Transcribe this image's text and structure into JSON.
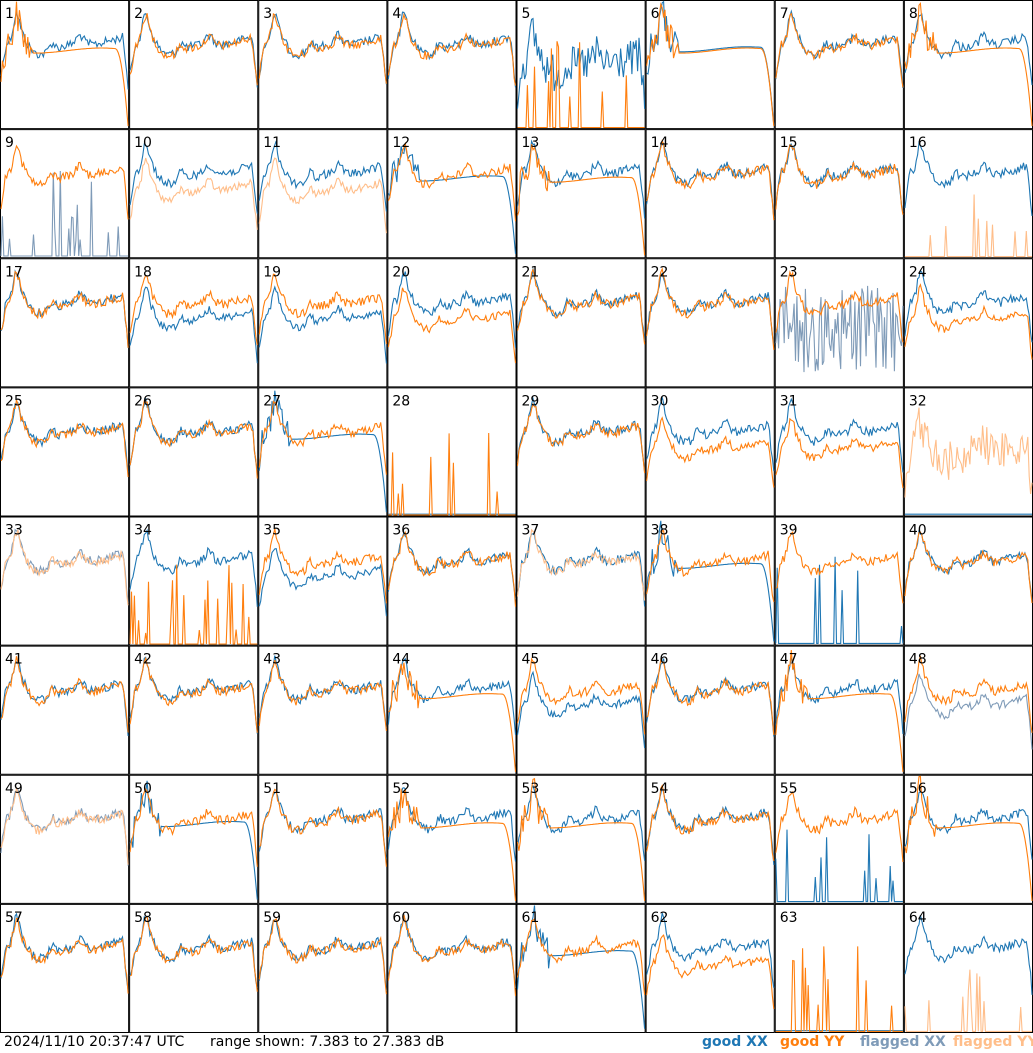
{
  "footer": {
    "timestamp": "2024/11/10 20:37:47 UTC",
    "range_text": "range shown: 7.383 to 27.383 dB"
  },
  "legend": [
    {
      "label": "good XX",
      "color": "#1f77b4"
    },
    {
      "label": "good YY",
      "color": "#ff7f0e"
    },
    {
      "label": "flagged XX",
      "color": "#7f9bb8"
    },
    {
      "label": "flagged YY",
      "color": "#ffbe8a"
    }
  ],
  "chart_data": {
    "type": "line",
    "layout": "small-multiples",
    "rows": 8,
    "cols": 8,
    "ylim_db": [
      7.383,
      27.383
    ],
    "panels": [
      {
        "id": "1",
        "xx": "good",
        "yy": "good",
        "xx_shape": "normal",
        "yy_shape": "droop"
      },
      {
        "id": "2",
        "xx": "good",
        "yy": "good",
        "xx_shape": "normal",
        "yy_shape": "normal"
      },
      {
        "id": "3",
        "xx": "good",
        "yy": "good",
        "xx_shape": "normal",
        "yy_shape": "normal"
      },
      {
        "id": "4",
        "xx": "good",
        "yy": "good",
        "xx_shape": "normal",
        "yy_shape": "normal"
      },
      {
        "id": "5",
        "xx": "good",
        "yy": "good",
        "xx_shape": "noisy",
        "yy_shape": "spiky_low"
      },
      {
        "id": "6",
        "xx": "good",
        "yy": "good",
        "xx_shape": "droop",
        "yy_shape": "droop"
      },
      {
        "id": "7",
        "xx": "good",
        "yy": "good",
        "xx_shape": "normal",
        "yy_shape": "normal"
      },
      {
        "id": "8",
        "xx": "good",
        "yy": "good",
        "xx_shape": "normal",
        "yy_shape": "droop"
      },
      {
        "id": "9",
        "xx": "flagged",
        "yy": "good",
        "xx_shape": "spiky_low",
        "yy_shape": "normal"
      },
      {
        "id": "10",
        "xx": "good",
        "yy": "flagged",
        "xx_shape": "normal",
        "yy_shape": "split"
      },
      {
        "id": "11",
        "xx": "good",
        "yy": "flagged",
        "xx_shape": "normal",
        "yy_shape": "split"
      },
      {
        "id": "12",
        "xx": "good",
        "yy": "good",
        "xx_shape": "droop",
        "yy_shape": "normal"
      },
      {
        "id": "13",
        "xx": "good",
        "yy": "good",
        "xx_shape": "normal",
        "yy_shape": "droop"
      },
      {
        "id": "14",
        "xx": "good",
        "yy": "good",
        "xx_shape": "normal",
        "yy_shape": "normal"
      },
      {
        "id": "15",
        "xx": "good",
        "yy": "good",
        "xx_shape": "normal",
        "yy_shape": "normal"
      },
      {
        "id": "16",
        "xx": "good",
        "yy": "flagged",
        "xx_shape": "normal",
        "yy_shape": "spiky_low"
      },
      {
        "id": "17",
        "xx": "good",
        "yy": "good",
        "xx_shape": "normal",
        "yy_shape": "normal"
      },
      {
        "id": "18",
        "xx": "good",
        "yy": "good",
        "xx_shape": "split",
        "yy_shape": "normal"
      },
      {
        "id": "19",
        "xx": "good",
        "yy": "good",
        "xx_shape": "split",
        "yy_shape": "normal"
      },
      {
        "id": "20",
        "xx": "good",
        "yy": "good",
        "xx_shape": "normal",
        "yy_shape": "split"
      },
      {
        "id": "21",
        "xx": "good",
        "yy": "good",
        "xx_shape": "normal",
        "yy_shape": "normal"
      },
      {
        "id": "22",
        "xx": "good",
        "yy": "good",
        "xx_shape": "normal",
        "yy_shape": "normal"
      },
      {
        "id": "23",
        "xx": "flagged",
        "yy": "good",
        "xx_shape": "noisy_low",
        "yy_shape": "normal"
      },
      {
        "id": "24",
        "xx": "good",
        "yy": "good",
        "xx_shape": "normal",
        "yy_shape": "split"
      },
      {
        "id": "25",
        "xx": "good",
        "yy": "good",
        "xx_shape": "normal",
        "yy_shape": "normal"
      },
      {
        "id": "26",
        "xx": "good",
        "yy": "good",
        "xx_shape": "normal",
        "yy_shape": "normal"
      },
      {
        "id": "27",
        "xx": "good",
        "yy": "good",
        "xx_shape": "droop",
        "yy_shape": "normal"
      },
      {
        "id": "28",
        "xx": "good",
        "yy": "good",
        "xx_shape": "dead",
        "yy_shape": "spiky_low"
      },
      {
        "id": "29",
        "xx": "good",
        "yy": "good",
        "xx_shape": "normal",
        "yy_shape": "normal"
      },
      {
        "id": "30",
        "xx": "good",
        "yy": "good",
        "xx_shape": "normal",
        "yy_shape": "split"
      },
      {
        "id": "31",
        "xx": "good",
        "yy": "good",
        "xx_shape": "normal",
        "yy_shape": "split"
      },
      {
        "id": "32",
        "xx": "good",
        "yy": "flagged",
        "xx_shape": "dead",
        "yy_shape": "noisy"
      },
      {
        "id": "33",
        "xx": "flagged",
        "yy": "flagged",
        "xx_shape": "normal",
        "yy_shape": "normal"
      },
      {
        "id": "34",
        "xx": "good",
        "yy": "good",
        "xx_shape": "normal",
        "yy_shape": "spiky_low"
      },
      {
        "id": "35",
        "xx": "good",
        "yy": "good",
        "xx_shape": "split",
        "yy_shape": "normal"
      },
      {
        "id": "36",
        "xx": "good",
        "yy": "good",
        "xx_shape": "normal",
        "yy_shape": "normal"
      },
      {
        "id": "37",
        "xx": "good",
        "yy": "flagged",
        "xx_shape": "normal",
        "yy_shape": "normal"
      },
      {
        "id": "38",
        "xx": "good",
        "yy": "good",
        "xx_shape": "droop",
        "yy_shape": "normal"
      },
      {
        "id": "39",
        "xx": "good",
        "yy": "good",
        "xx_shape": "spiky_low",
        "yy_shape": "normal"
      },
      {
        "id": "40",
        "xx": "good",
        "yy": "good",
        "xx_shape": "normal",
        "yy_shape": "normal"
      },
      {
        "id": "41",
        "xx": "good",
        "yy": "good",
        "xx_shape": "normal",
        "yy_shape": "normal"
      },
      {
        "id": "42",
        "xx": "good",
        "yy": "good",
        "xx_shape": "normal",
        "yy_shape": "normal"
      },
      {
        "id": "43",
        "xx": "good",
        "yy": "good",
        "xx_shape": "normal",
        "yy_shape": "normal"
      },
      {
        "id": "44",
        "xx": "good",
        "yy": "good",
        "xx_shape": "normal",
        "yy_shape": "droop"
      },
      {
        "id": "45",
        "xx": "good",
        "yy": "good",
        "xx_shape": "split",
        "yy_shape": "normal"
      },
      {
        "id": "46",
        "xx": "good",
        "yy": "good",
        "xx_shape": "normal",
        "yy_shape": "normal"
      },
      {
        "id": "47",
        "xx": "good",
        "yy": "good",
        "xx_shape": "normal",
        "yy_shape": "droop"
      },
      {
        "id": "48",
        "xx": "flagged",
        "yy": "good",
        "xx_shape": "split",
        "yy_shape": "normal"
      },
      {
        "id": "49",
        "xx": "flagged",
        "yy": "flagged",
        "xx_shape": "normal",
        "yy_shape": "normal"
      },
      {
        "id": "50",
        "xx": "good",
        "yy": "good",
        "xx_shape": "droop",
        "yy_shape": "normal"
      },
      {
        "id": "51",
        "xx": "good",
        "yy": "good",
        "xx_shape": "normal",
        "yy_shape": "normal"
      },
      {
        "id": "52",
        "xx": "good",
        "yy": "good",
        "xx_shape": "normal",
        "yy_shape": "droop"
      },
      {
        "id": "53",
        "xx": "good",
        "yy": "good",
        "xx_shape": "normal",
        "yy_shape": "droop"
      },
      {
        "id": "54",
        "xx": "good",
        "yy": "good",
        "xx_shape": "normal",
        "yy_shape": "normal"
      },
      {
        "id": "55",
        "xx": "good",
        "yy": "good",
        "xx_shape": "spiky_low",
        "yy_shape": "normal"
      },
      {
        "id": "56",
        "xx": "good",
        "yy": "good",
        "xx_shape": "normal",
        "yy_shape": "droop"
      },
      {
        "id": "57",
        "xx": "good",
        "yy": "good",
        "xx_shape": "normal",
        "yy_shape": "normal"
      },
      {
        "id": "58",
        "xx": "good",
        "yy": "good",
        "xx_shape": "normal",
        "yy_shape": "normal"
      },
      {
        "id": "59",
        "xx": "good",
        "yy": "good",
        "xx_shape": "normal",
        "yy_shape": "normal"
      },
      {
        "id": "60",
        "xx": "good",
        "yy": "good",
        "xx_shape": "normal",
        "yy_shape": "normal"
      },
      {
        "id": "61",
        "xx": "good",
        "yy": "good",
        "xx_shape": "droop",
        "yy_shape": "normal"
      },
      {
        "id": "62",
        "xx": "good",
        "yy": "good",
        "xx_shape": "normal",
        "yy_shape": "split"
      },
      {
        "id": "63",
        "xx": "good",
        "yy": "good",
        "xx_shape": "dead",
        "yy_shape": "spiky_low"
      },
      {
        "id": "64",
        "xx": "good",
        "yy": "flagged",
        "xx_shape": "normal",
        "yy_shape": "spiky_low"
      }
    ]
  }
}
